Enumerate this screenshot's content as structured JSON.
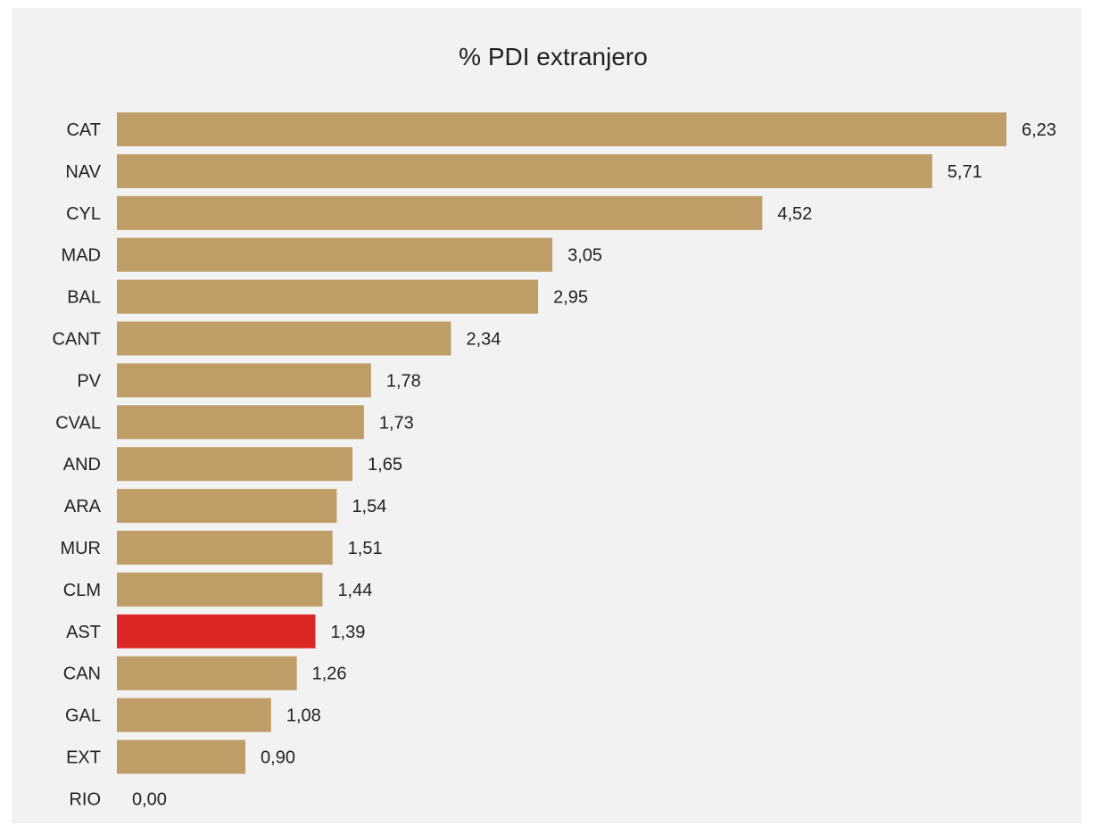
{
  "chart_data": {
    "type": "bar",
    "orientation": "horizontal",
    "title": "% PDI extranjero",
    "categories": [
      "CAT",
      "NAV",
      "CYL",
      "MAD",
      "BAL",
      "CANT",
      "PV",
      "CVAL",
      "AND",
      "ARA",
      "MUR",
      "CLM",
      "AST",
      "CAN",
      "GAL",
      "EXT",
      "RIO"
    ],
    "values": [
      6.23,
      5.71,
      4.52,
      3.05,
      2.95,
      2.34,
      1.78,
      1.73,
      1.65,
      1.54,
      1.51,
      1.44,
      1.39,
      1.26,
      1.08,
      0.9,
      0.0
    ],
    "value_labels": [
      "6,23",
      "5,71",
      "4,52",
      "3,05",
      "2,95",
      "2,34",
      "1,78",
      "1,73",
      "1,65",
      "1,54",
      "1,51",
      "1,44",
      "1,39",
      "1,26",
      "1,08",
      "0,90",
      "0,00"
    ],
    "highlight_category": "AST",
    "colors": {
      "bar": "#bf9d66",
      "highlight": "#dc2626",
      "background": "#f3f2f2"
    },
    "xlim": [
      0,
      6.23
    ],
    "grid": false,
    "legend": "none"
  }
}
